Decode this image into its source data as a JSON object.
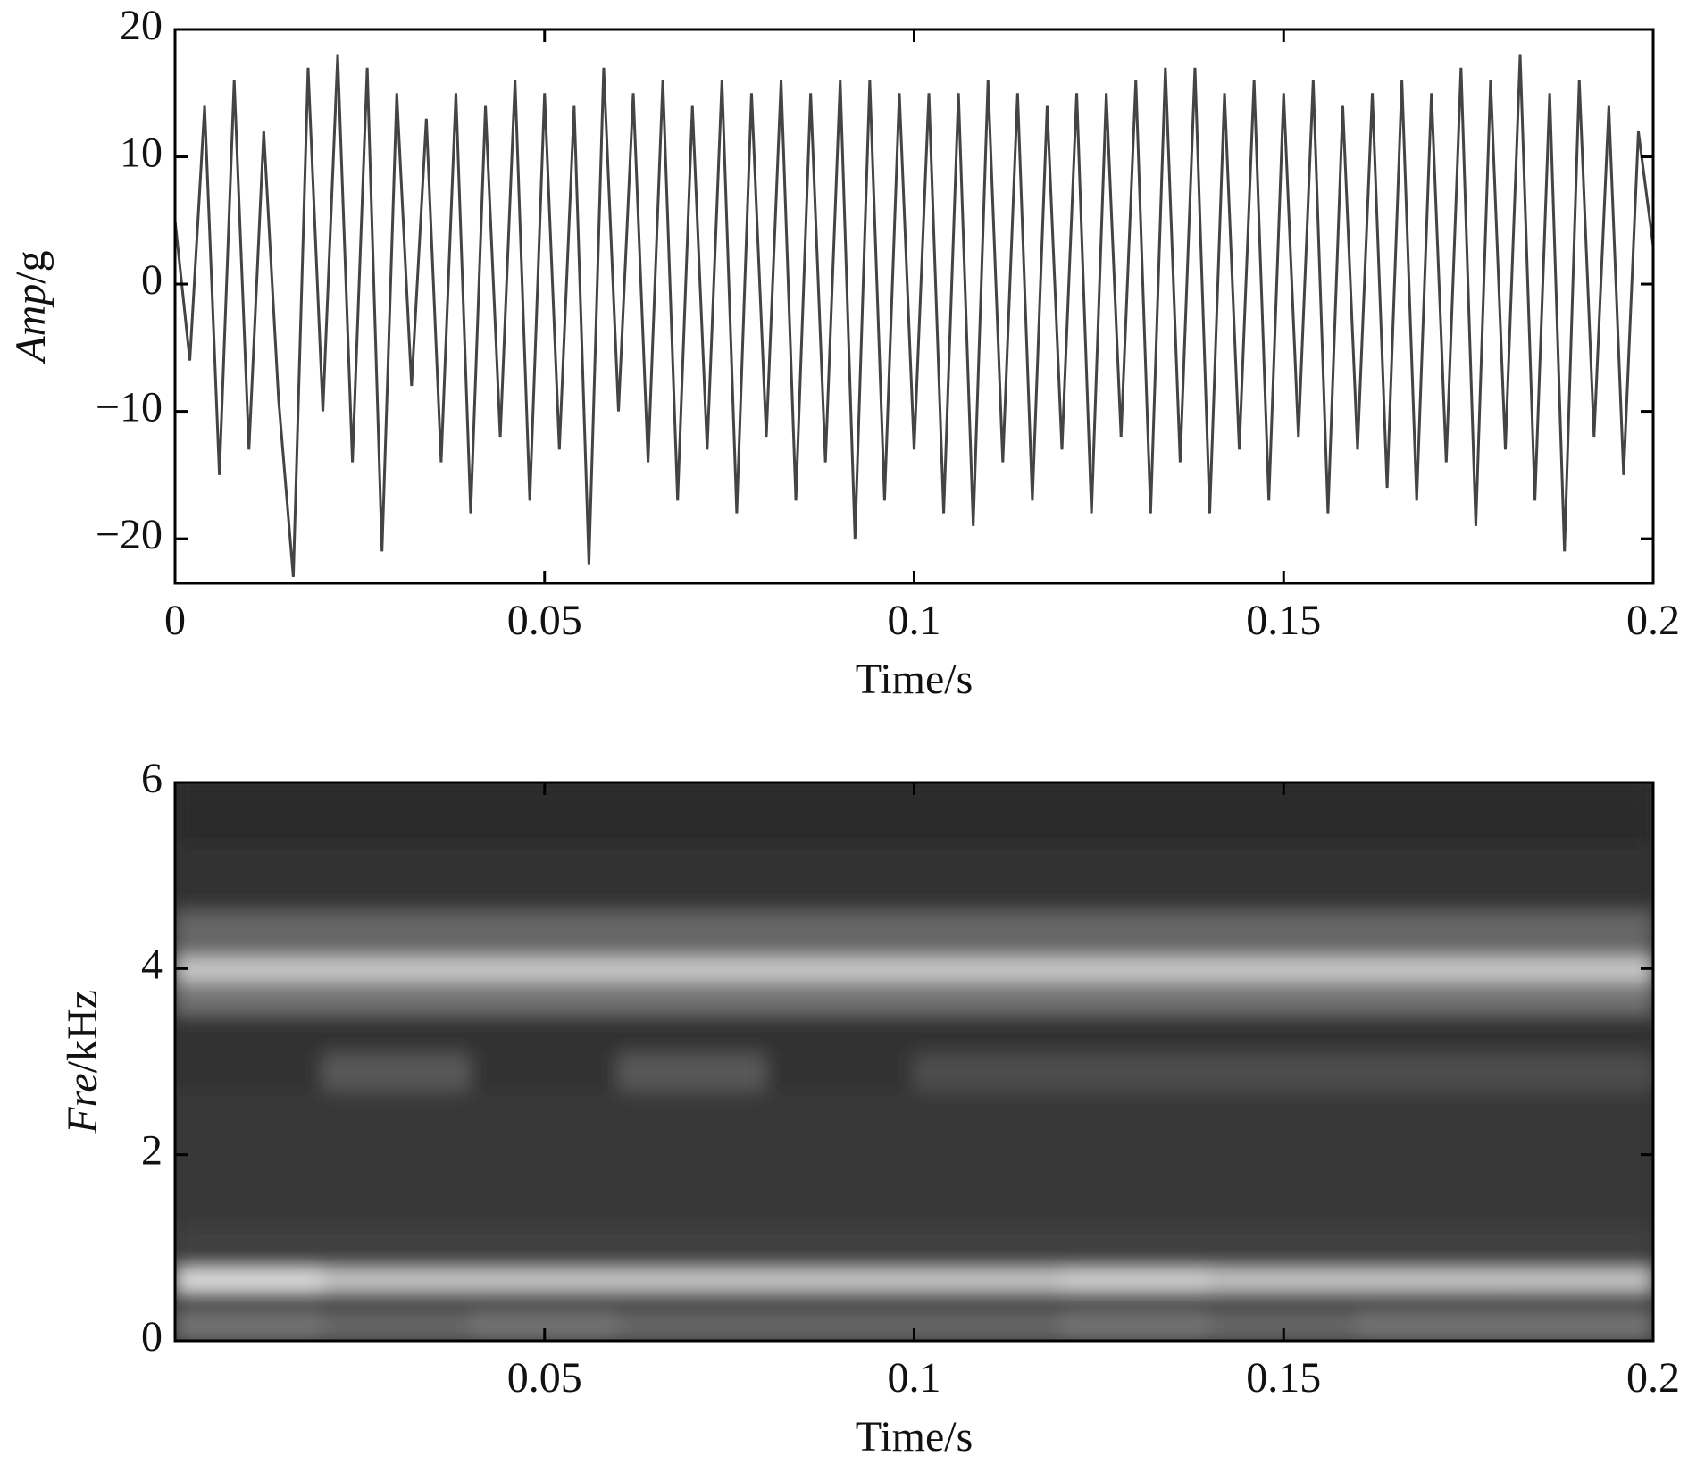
{
  "chart_data": [
    {
      "type": "line",
      "xlabel": "Time/s",
      "ylabel_symbol": "Amp",
      "ylabel_unit": "/g",
      "color": "#444444",
      "xlim": [
        0,
        0.2
      ],
      "ylim": [
        -23.5,
        20
      ],
      "xticks": [
        0,
        0.05,
        0.1,
        0.15,
        0.2
      ],
      "yticks": [
        20,
        10,
        0,
        {
          "value": -10,
          "label": "−10"
        },
        {
          "value": -20,
          "label": "−20"
        }
      ],
      "x": [
        0,
        0.002,
        0.004,
        0.006,
        0.008,
        0.01,
        0.012,
        0.014,
        0.016,
        0.018,
        0.02,
        0.022,
        0.024,
        0.026,
        0.028,
        0.03,
        0.032,
        0.034,
        0.036,
        0.038,
        0.04,
        0.042,
        0.044,
        0.046,
        0.048,
        0.05,
        0.052,
        0.054,
        0.056,
        0.058,
        0.06,
        0.062,
        0.064,
        0.066,
        0.068,
        0.07,
        0.072,
        0.074,
        0.076,
        0.078,
        0.08,
        0.082,
        0.084,
        0.086,
        0.088,
        0.09,
        0.092,
        0.094,
        0.096,
        0.098,
        0.1,
        0.102,
        0.104,
        0.106,
        0.108,
        0.11,
        0.112,
        0.114,
        0.116,
        0.118,
        0.12,
        0.122,
        0.124,
        0.126,
        0.128,
        0.13,
        0.132,
        0.134,
        0.136,
        0.138,
        0.14,
        0.142,
        0.144,
        0.146,
        0.148,
        0.15,
        0.152,
        0.154,
        0.156,
        0.158,
        0.16,
        0.162,
        0.164,
        0.166,
        0.168,
        0.17,
        0.172,
        0.174,
        0.176,
        0.178,
        0.18,
        0.182,
        0.184,
        0.186,
        0.188,
        0.19,
        0.192,
        0.194,
        0.196,
        0.198,
        0.2
      ],
      "values": [
        5,
        -6,
        14,
        -15,
        16,
        -13,
        12,
        -9,
        -23,
        17,
        -10,
        18,
        -14,
        17,
        -21,
        15,
        -8,
        13,
        -14,
        15,
        -18,
        14,
        -12,
        16,
        -17,
        15,
        -13,
        14,
        -22,
        17,
        -10,
        15,
        -14,
        16,
        -17,
        14,
        -13,
        16,
        -18,
        15,
        -12,
        16,
        -17,
        15,
        -14,
        16,
        -20,
        16,
        -17,
        15,
        -13,
        15,
        -18,
        15,
        -19,
        16,
        -14,
        15,
        -17,
        14,
        -13,
        15,
        -18,
        15,
        -12,
        16,
        -18,
        17,
        -14,
        17,
        -18,
        15,
        -13,
        16,
        -17,
        15,
        -12,
        16,
        -18,
        14,
        -13,
        15,
        -16,
        16,
        -17,
        15,
        -14,
        17,
        -19,
        16,
        -13,
        18,
        -17,
        15,
        -21,
        16,
        -12,
        14,
        -15,
        12,
        3
      ]
    },
    {
      "type": "heatmap",
      "xlabel": "Time/s",
      "ylabel_symbol": "Fre",
      "ylabel_unit": "/kHz",
      "colormap": "gray",
      "xlim": [
        0,
        0.2
      ],
      "ylim": [
        0,
        6
      ],
      "xticks": [
        0.05,
        0.1,
        0.15,
        0.2
      ],
      "yticks": [
        0,
        2,
        4,
        6
      ],
      "x": [
        0.01,
        0.03,
        0.05,
        0.07,
        0.09,
        0.11,
        0.13,
        0.15,
        0.17,
        0.19
      ],
      "y": [
        0.2,
        0.45,
        0.65,
        0.9,
        1.6,
        2.5,
        2.9,
        3.3,
        3.75,
        4.0,
        4.25,
        5.0,
        5.7
      ],
      "z": [
        [
          0.45,
          0.4,
          0.45,
          0.4,
          0.4,
          0.4,
          0.45,
          0.4,
          0.45,
          0.45
        ],
        [
          0.25,
          0.25,
          0.25,
          0.25,
          0.25,
          0.25,
          0.25,
          0.25,
          0.25,
          0.25
        ],
        [
          0.9,
          0.8,
          0.8,
          0.8,
          0.8,
          0.8,
          0.85,
          0.8,
          0.8,
          0.8
        ],
        [
          0.25,
          0.25,
          0.25,
          0.25,
          0.25,
          0.25,
          0.25,
          0.25,
          0.25,
          0.25
        ],
        [
          0.22,
          0.22,
          0.22,
          0.22,
          0.22,
          0.22,
          0.22,
          0.22,
          0.22,
          0.22
        ],
        [
          0.22,
          0.22,
          0.22,
          0.22,
          0.22,
          0.22,
          0.22,
          0.22,
          0.22,
          0.22
        ],
        [
          0.2,
          0.35,
          0.2,
          0.35,
          0.2,
          0.3,
          0.3,
          0.3,
          0.3,
          0.3
        ],
        [
          0.2,
          0.2,
          0.2,
          0.2,
          0.2,
          0.2,
          0.2,
          0.2,
          0.2,
          0.2
        ],
        [
          0.45,
          0.45,
          0.45,
          0.45,
          0.45,
          0.45,
          0.45,
          0.45,
          0.45,
          0.45
        ],
        [
          0.8,
          0.8,
          0.8,
          0.8,
          0.8,
          0.8,
          0.8,
          0.8,
          0.8,
          0.8
        ],
        [
          0.4,
          0.4,
          0.4,
          0.4,
          0.4,
          0.4,
          0.4,
          0.4,
          0.4,
          0.4
        ],
        [
          0.2,
          0.2,
          0.2,
          0.2,
          0.2,
          0.2,
          0.2,
          0.2,
          0.2,
          0.2
        ],
        [
          0.17,
          0.17,
          0.17,
          0.17,
          0.17,
          0.17,
          0.17,
          0.17,
          0.17,
          0.17
        ]
      ]
    }
  ]
}
